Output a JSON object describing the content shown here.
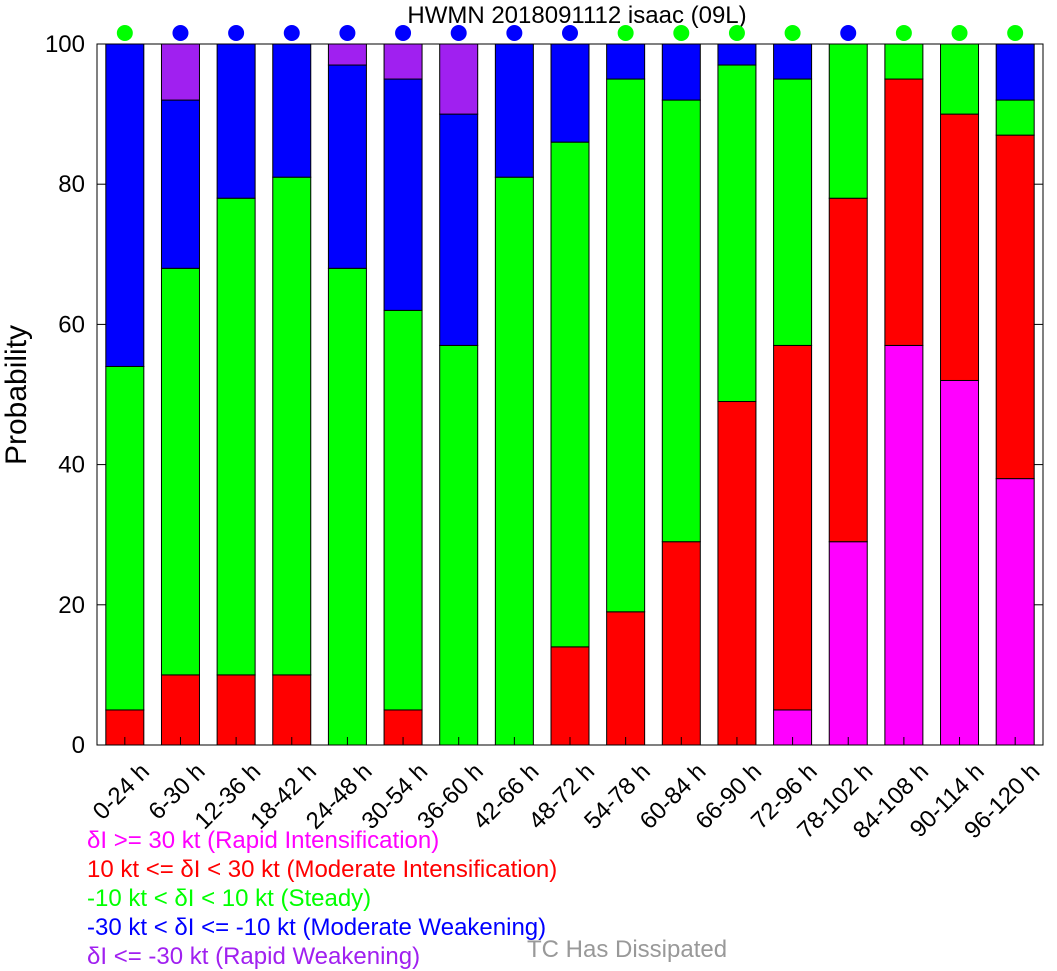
{
  "chart_data": {
    "type": "bar",
    "stacked": true,
    "title": "HWMN 2018091112 isaac (09L)",
    "xlabel": "",
    "ylabel": "Probability",
    "ylim": [
      0,
      100
    ],
    "yticks": [
      0,
      20,
      40,
      60,
      80,
      100
    ],
    "grid": false,
    "categories": [
      "0-24 h",
      "6-30 h",
      "12-36 h",
      "18-42 h",
      "24-48 h",
      "30-54 h",
      "36-60 h",
      "42-66 h",
      "48-72 h",
      "54-78 h",
      "60-84 h",
      "66-90 h",
      "72-96 h",
      "78-102 h",
      "84-108 h",
      "90-114 h",
      "96-120 h"
    ],
    "series": [
      {
        "name": "δI >= 30 kt (Rapid Intensification)",
        "color": "#ff00ff",
        "values": [
          0,
          0,
          0,
          0,
          0,
          0,
          0,
          0,
          0,
          0,
          0,
          0,
          5,
          29,
          57,
          52,
          38
        ]
      },
      {
        "name": "10 kt <= δI < 30 kt (Moderate Intensification)",
        "color": "#ff0000",
        "values": [
          5,
          10,
          10,
          10,
          0,
          5,
          0,
          0,
          14,
          19,
          29,
          49,
          52,
          49,
          38,
          38,
          49
        ]
      },
      {
        "name": "-10 kt < δI < 10 kt (Steady)",
        "color": "#00ff00",
        "values": [
          49,
          58,
          68,
          71,
          68,
          57,
          57,
          81,
          72,
          76,
          63,
          48,
          38,
          22,
          5,
          10,
          5
        ]
      },
      {
        "name": "-30 kt < δI <= -10 kt (Moderate Weakening)",
        "color": "#0000ff",
        "values": [
          46,
          24,
          22,
          19,
          29,
          33,
          33,
          19,
          14,
          5,
          8,
          3,
          5,
          0,
          0,
          0,
          8
        ]
      },
      {
        "name": "δI <= -30 kt (Rapid Weakening)",
        "color": "#a020f0",
        "values": [
          0,
          8,
          0,
          0,
          3,
          5,
          10,
          0,
          0,
          0,
          0,
          0,
          0,
          0,
          0,
          0,
          0
        ]
      }
    ],
    "top_markers": [
      "#00ff00",
      "#0000ff",
      "#0000ff",
      "#0000ff",
      "#0000ff",
      "#0000ff",
      "#0000ff",
      "#0000ff",
      "#0000ff",
      "#00ff00",
      "#00ff00",
      "#00ff00",
      "#00ff00",
      "#0000ff",
      "#00ff00",
      "#00ff00",
      "#00ff00"
    ],
    "legend_placement": "bottom-left",
    "dissipated_label": {
      "text": "TC Has Dissipated",
      "color": "#999999"
    }
  }
}
